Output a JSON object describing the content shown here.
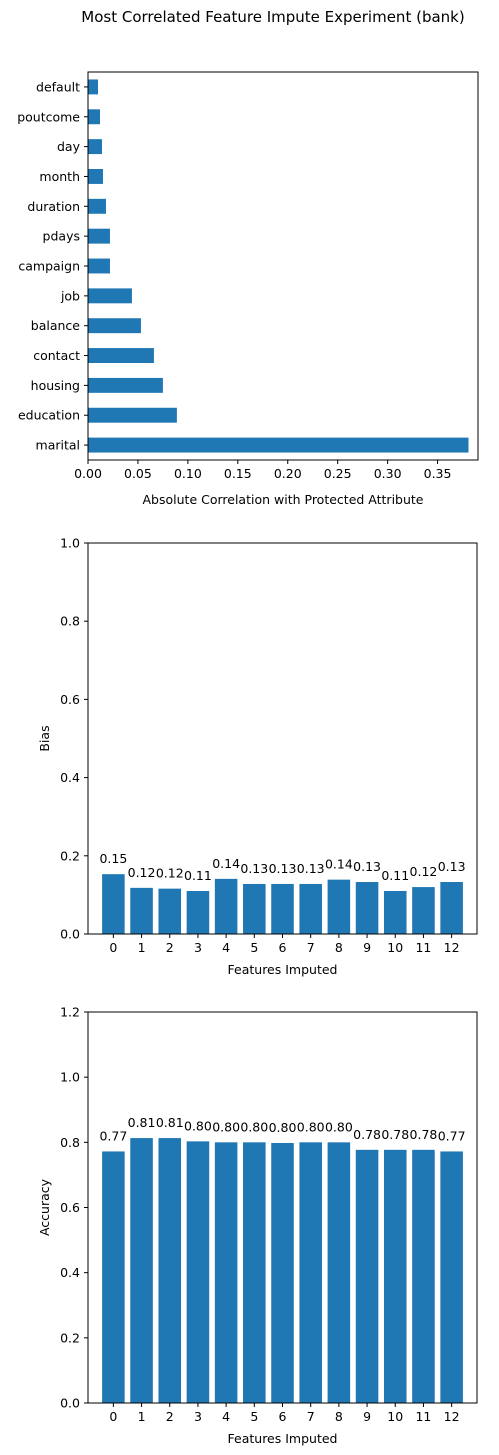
{
  "figure": {
    "title": "Most Correlated Feature Impute Experiment (bank)"
  },
  "colors": {
    "bar": "#1f77b4",
    "axis": "#000000",
    "background": "#ffffff"
  },
  "chart_data": [
    {
      "type": "bar",
      "orientation": "horizontal",
      "categories": [
        "marital",
        "education",
        "housing",
        "contact",
        "balance",
        "job",
        "campaign",
        "pdays",
        "duration",
        "month",
        "day",
        "poutcome",
        "default"
      ],
      "values": [
        0.381,
        0.089,
        0.075,
        0.066,
        0.053,
        0.044,
        0.022,
        0.022,
        0.018,
        0.015,
        0.014,
        0.012,
        0.01
      ],
      "xlabel": "Absolute Correlation with Protected Attribute",
      "ylabel": "",
      "xlim": [
        0,
        0.3905
      ],
      "xticks": [
        "0.00",
        "0.05",
        "0.10",
        "0.15",
        "0.20",
        "0.25",
        "0.30",
        "0.35"
      ],
      "grid": false
    },
    {
      "type": "bar",
      "categories": [
        "0",
        "1",
        "2",
        "3",
        "4",
        "5",
        "6",
        "7",
        "8",
        "9",
        "10",
        "11",
        "12"
      ],
      "values": [
        0.153,
        0.118,
        0.116,
        0.11,
        0.141,
        0.128,
        0.128,
        0.128,
        0.139,
        0.133,
        0.11,
        0.12,
        0.133
      ],
      "labels": [
        "0.15",
        "0.12",
        "0.12",
        "0.11",
        "0.14",
        "0.13",
        "0.13",
        "0.13",
        "0.14",
        "0.13",
        "0.11",
        "0.12",
        "0.13"
      ],
      "xlabel": "Features Imputed",
      "ylabel": "Bias",
      "ylim": [
        0,
        1.0
      ],
      "yticks": [
        "0.0",
        "0.2",
        "0.4",
        "0.6",
        "0.8",
        "1.0"
      ],
      "grid": false
    },
    {
      "type": "bar",
      "categories": [
        "0",
        "1",
        "2",
        "3",
        "4",
        "5",
        "6",
        "7",
        "8",
        "9",
        "10",
        "11",
        "12"
      ],
      "values": [
        0.772,
        0.813,
        0.813,
        0.803,
        0.8,
        0.8,
        0.798,
        0.8,
        0.8,
        0.777,
        0.777,
        0.777,
        0.772
      ],
      "labels": [
        "0.77",
        "0.81",
        "0.81",
        "0.80",
        "0.80",
        "0.80",
        "0.80",
        "0.80",
        "0.80",
        "0.78",
        "0.78",
        "0.78",
        "0.77"
      ],
      "xlabel": "Features Imputed",
      "ylabel": "Accuracy",
      "ylim": [
        0,
        1.2
      ],
      "yticks": [
        "0.0",
        "0.2",
        "0.4",
        "0.6",
        "0.8",
        "1.0",
        "1.2"
      ],
      "grid": false
    }
  ]
}
